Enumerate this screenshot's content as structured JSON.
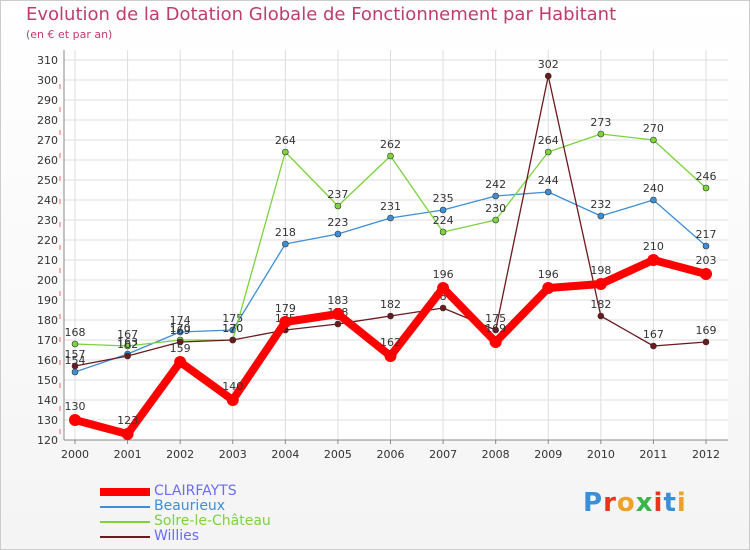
{
  "chart_data": {
    "type": "line",
    "title": "Evolution de la Dotation Globale de Fonctionnement par Habitant",
    "subtitle": "(en € et par an)",
    "xlabel": "",
    "ylabel": "",
    "categories": [
      "2000",
      "2001",
      "2002",
      "2003",
      "2004",
      "2005",
      "2006",
      "2007",
      "2008",
      "2009",
      "2010",
      "2011",
      "2012"
    ],
    "ylim": [
      120,
      310
    ],
    "yticks": [
      120,
      130,
      140,
      150,
      160,
      170,
      180,
      190,
      200,
      210,
      220,
      230,
      240,
      250,
      260,
      270,
      280,
      290,
      300,
      310
    ],
    "grid": true,
    "legend_position": "bottom-left",
    "series": [
      {
        "name": "CLAIRFAYTS",
        "color": "#ff0000",
        "values": [
          130,
          123,
          159,
          140,
          179,
          183,
          162,
          196,
          169,
          196,
          198,
          210,
          203
        ]
      },
      {
        "name": "Beaurieux",
        "color": "#3e8fd6",
        "values": [
          154,
          163,
          174,
          175,
          218,
          223,
          231,
          235,
          242,
          244,
          232,
          240,
          217
        ]
      },
      {
        "name": "Solre-le-Château",
        "color": "#7cd33c",
        "values": [
          168,
          167,
          170,
          170,
          264,
          237,
          262,
          224,
          230,
          264,
          273,
          270,
          246
        ]
      },
      {
        "name": "Willies",
        "color": "#6b1a1e",
        "values": [
          157,
          162,
          169,
          170,
          175,
          178,
          182,
          186,
          175,
          302,
          182,
          167,
          169
        ]
      }
    ],
    "logo": {
      "text": "Proxiti",
      "letter_colors": [
        "#3a8fd8",
        "#e8361e",
        "#f0a12a",
        "#39b54a",
        "#e8361e",
        "#3a8fd8",
        "#f0a12a"
      ]
    }
  }
}
